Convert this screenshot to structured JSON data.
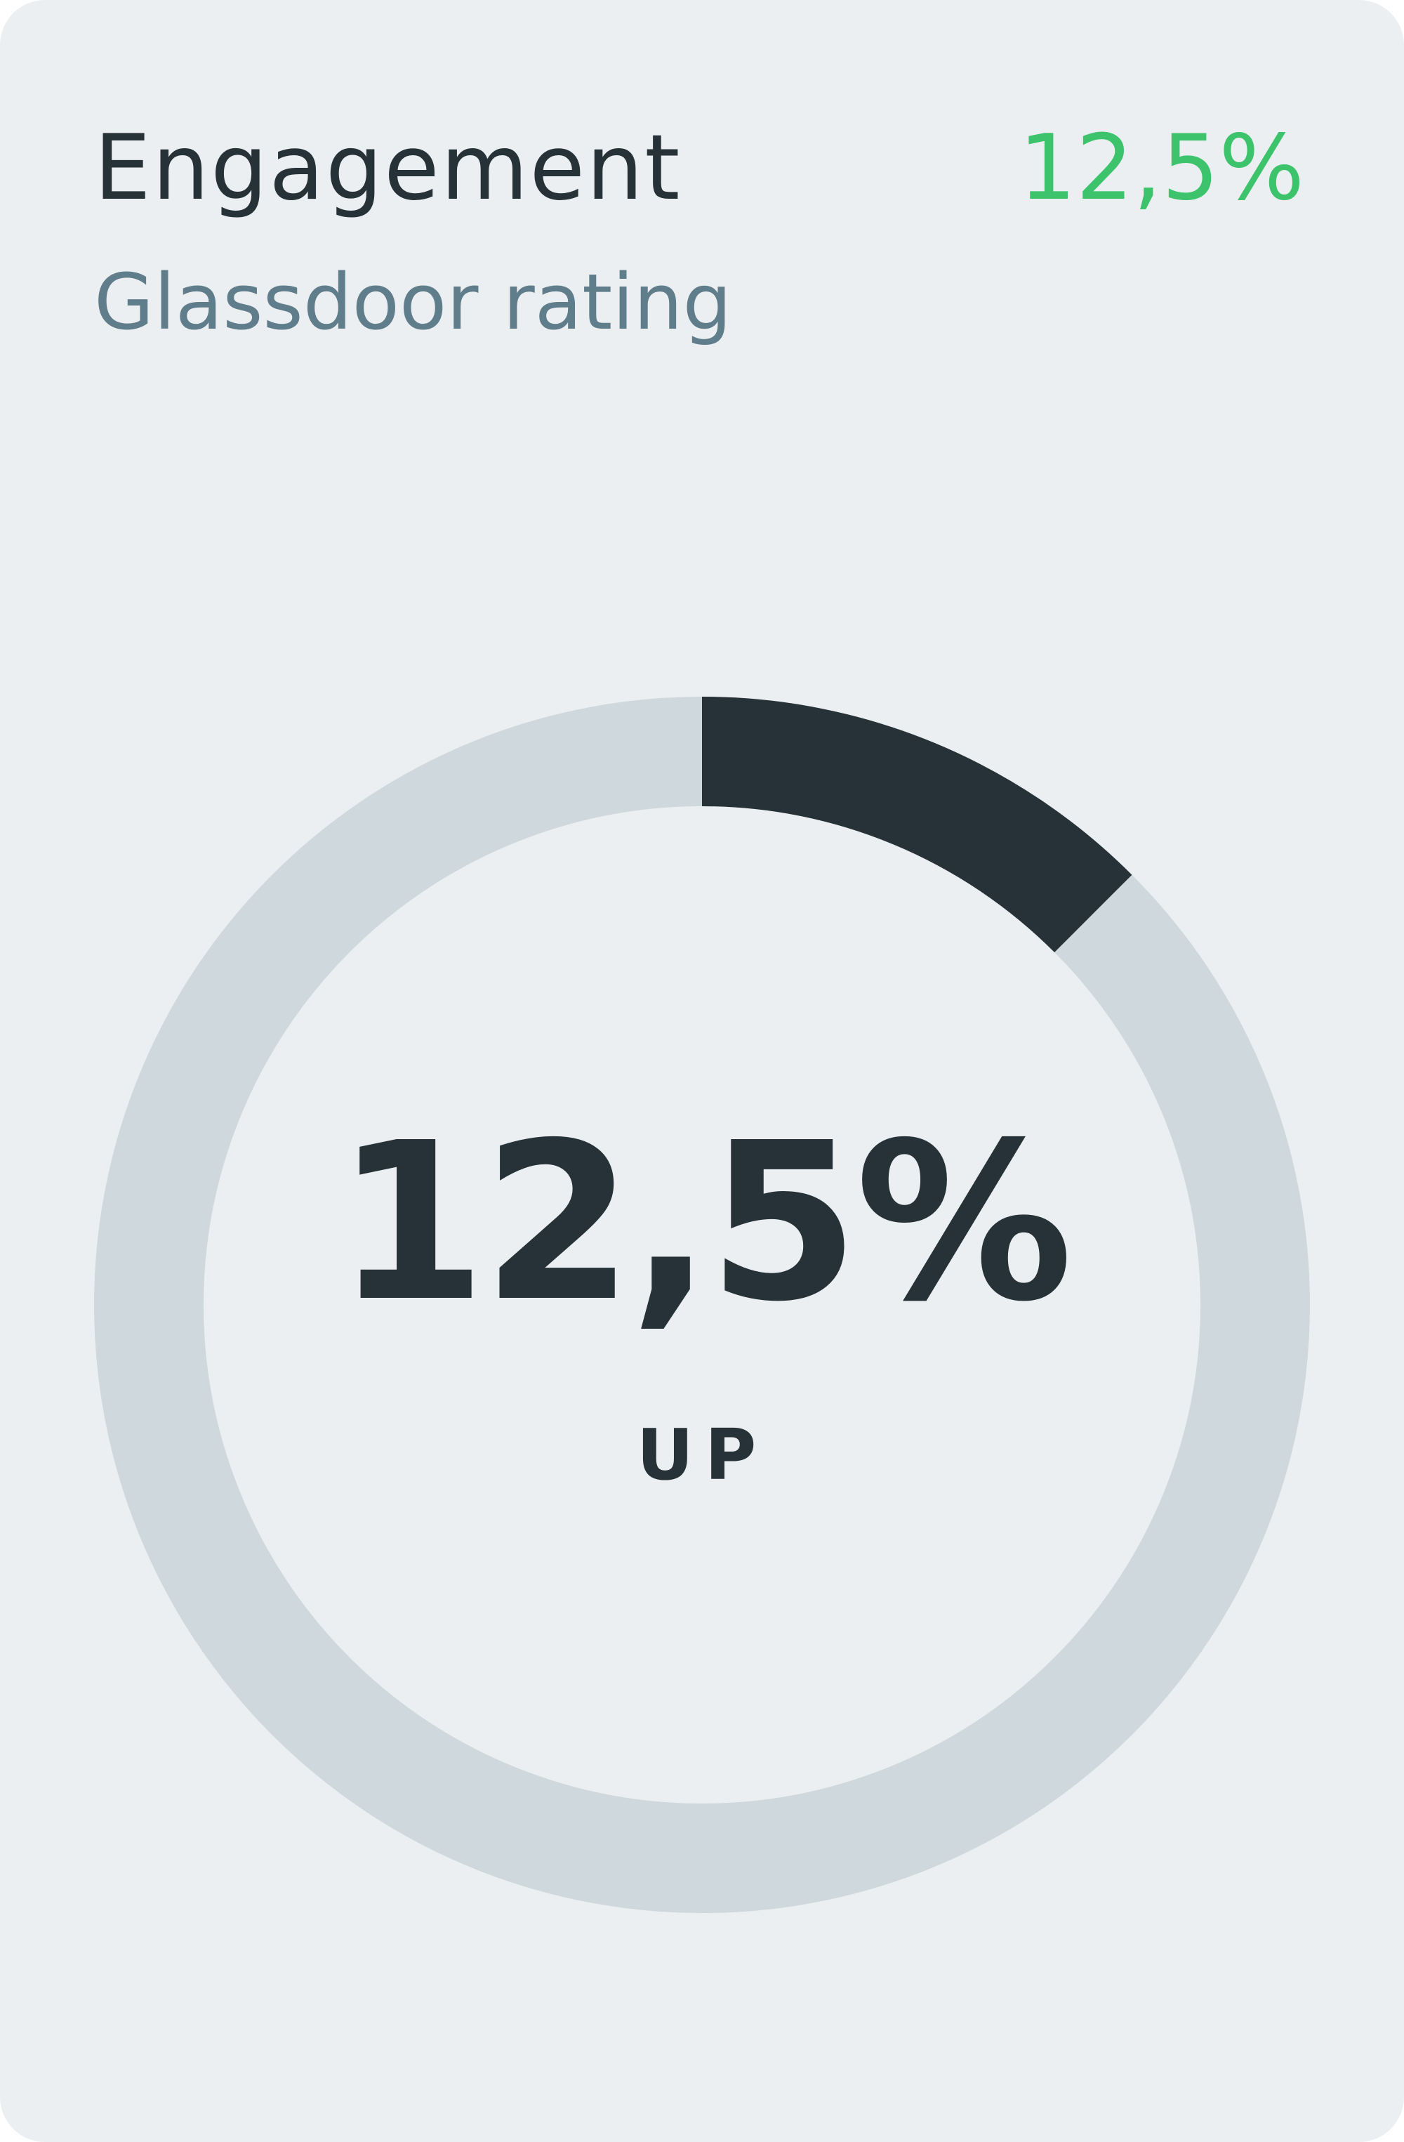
{
  "card": {
    "title": "Engagement",
    "subtitle": "Glassdoor rating",
    "delta": "12,5%"
  },
  "gauge": {
    "value_label": "12,5%",
    "status_label": "UP",
    "progress_fraction": 0.125,
    "colors": {
      "track": "#cfd8dc",
      "progress": "#263238"
    }
  },
  "colors": {
    "background": "#eceff1",
    "title": "#263238",
    "subtitle": "#607d8b",
    "delta": "#3cc36c"
  }
}
